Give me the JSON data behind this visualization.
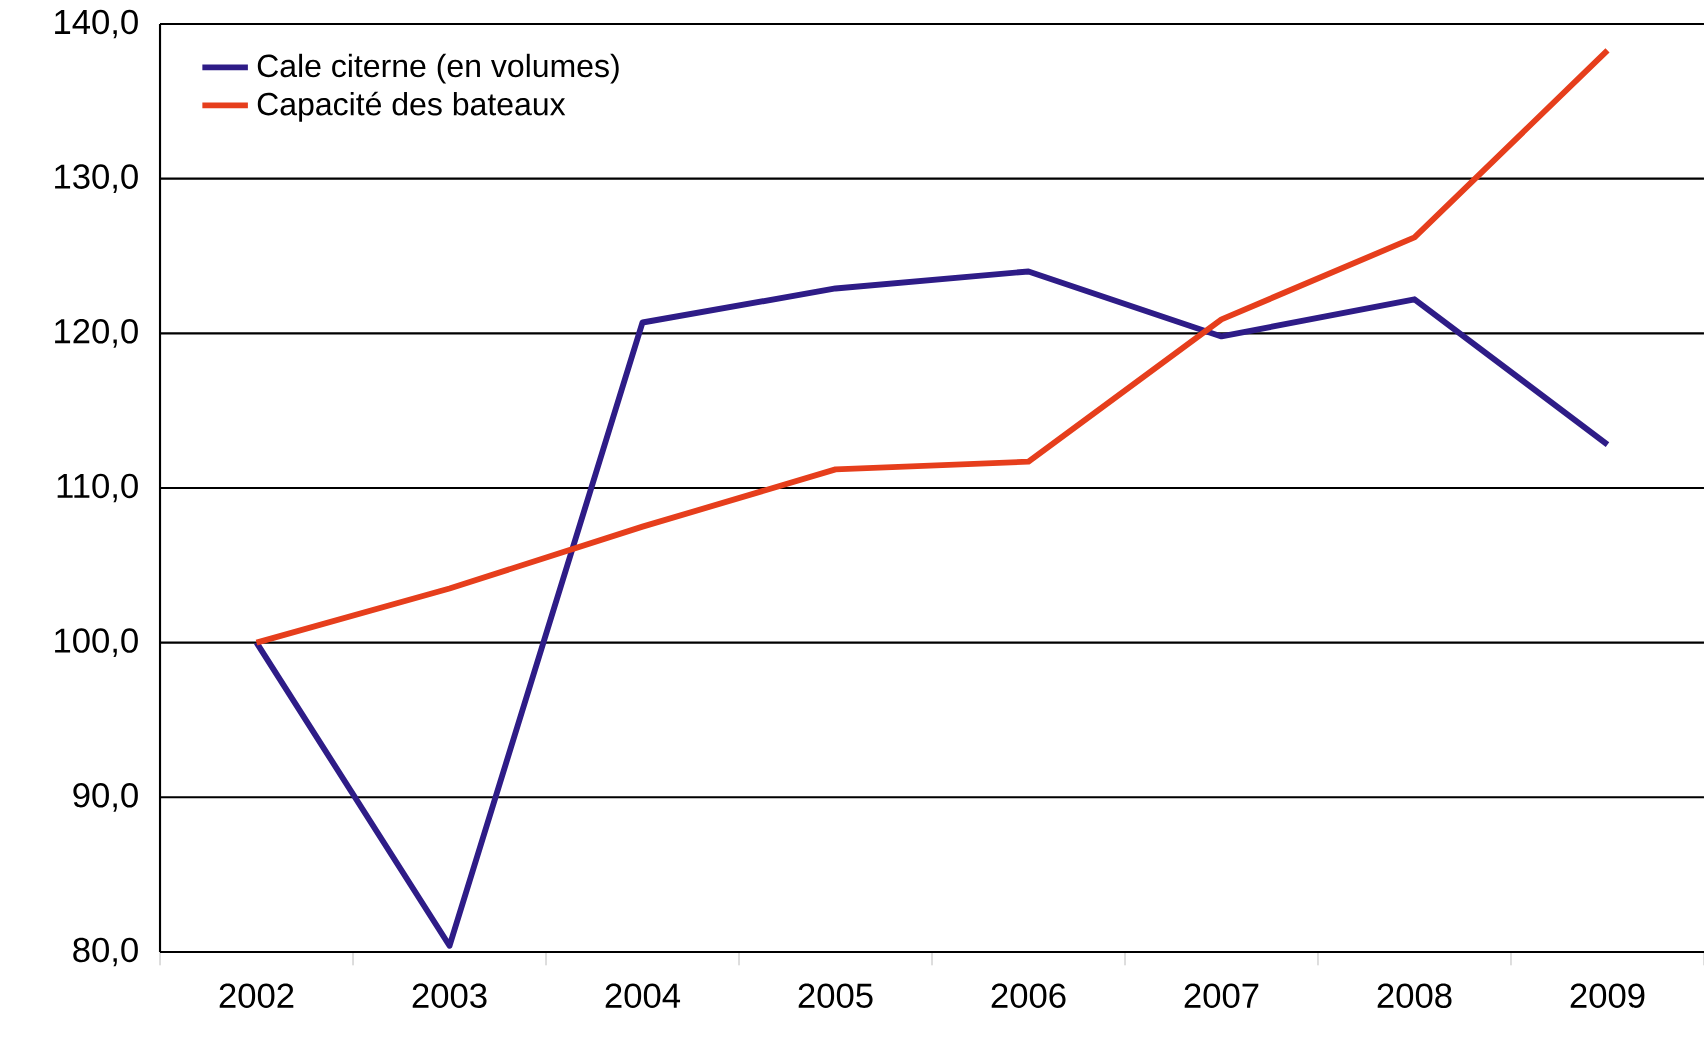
{
  "chart_data": {
    "type": "line",
    "categories": [
      "2002",
      "2003",
      "2004",
      "2005",
      "2006",
      "2007",
      "2008",
      "2009"
    ],
    "series": [
      {
        "name": "Cale citerne (en volumes)",
        "color": "#2e1c87",
        "values": [
          100.0,
          80.4,
          120.7,
          122.9,
          124.0,
          119.8,
          122.2,
          112.8
        ]
      },
      {
        "name": "Capacité des bateaux",
        "color": "#e63e1c",
        "values": [
          100.0,
          103.5,
          107.5,
          111.2,
          111.7,
          120.9,
          126.2,
          138.3
        ]
      }
    ],
    "ylim": [
      80,
      140
    ],
    "yticks": [
      {
        "value": 80,
        "label": "80,0"
      },
      {
        "value": 90,
        "label": "90,0"
      },
      {
        "value": 100,
        "label": "100,0"
      },
      {
        "value": 110,
        "label": "110,0"
      },
      {
        "value": 120,
        "label": "120,0"
      },
      {
        "value": 130,
        "label": "130,0"
      },
      {
        "value": 140,
        "label": "140,0"
      }
    ],
    "grid": "y",
    "legend": "top left",
    "marker": "none",
    "line_style": "solid"
  }
}
